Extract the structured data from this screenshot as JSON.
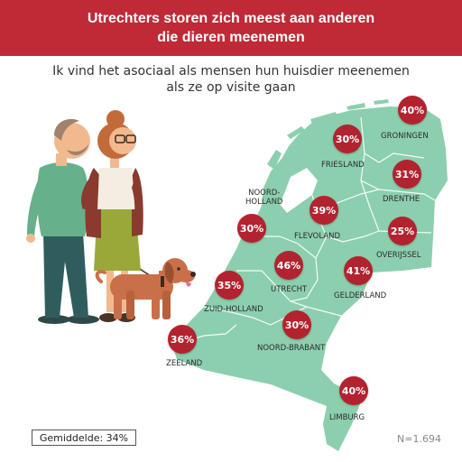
{
  "header": {
    "line1": "Utrechters storen zich meest aan anderen",
    "line2": "die dieren meenemen"
  },
  "subtitle": {
    "line1": "Ik vind het asociaal als mensen hun huisdier meenemen",
    "line2": "als ze op visite gaan"
  },
  "provinces": [
    {
      "name": "GRONINGEN",
      "value": "40%"
    },
    {
      "name": "FRIESLAND",
      "value": "30%"
    },
    {
      "name": "DRENTHE",
      "value": "31%"
    },
    {
      "name_line1": "NOORD-",
      "name_line2": "HOLLAND",
      "value": "30%"
    },
    {
      "name": "FLEVOLAND",
      "value": "39%"
    },
    {
      "name": "OVERIJSSEL",
      "value": "25%"
    },
    {
      "name": "UTRECHT",
      "value": "46%"
    },
    {
      "name": "GELDERLAND",
      "value": "41%"
    },
    {
      "name": "ZUID-HOLLAND",
      "value": "35%"
    },
    {
      "name": "NOORD-BRABANT",
      "value": "30%"
    },
    {
      "name": "ZEELAND",
      "value": "36%"
    },
    {
      "name": "LIMBURG",
      "value": "40%"
    }
  ],
  "average": "Gemiddelde: 34%",
  "sample": "N=1.694",
  "colors": {
    "header": "#bf2a36",
    "badge": "#b3232f",
    "map": "#8ccfae"
  }
}
